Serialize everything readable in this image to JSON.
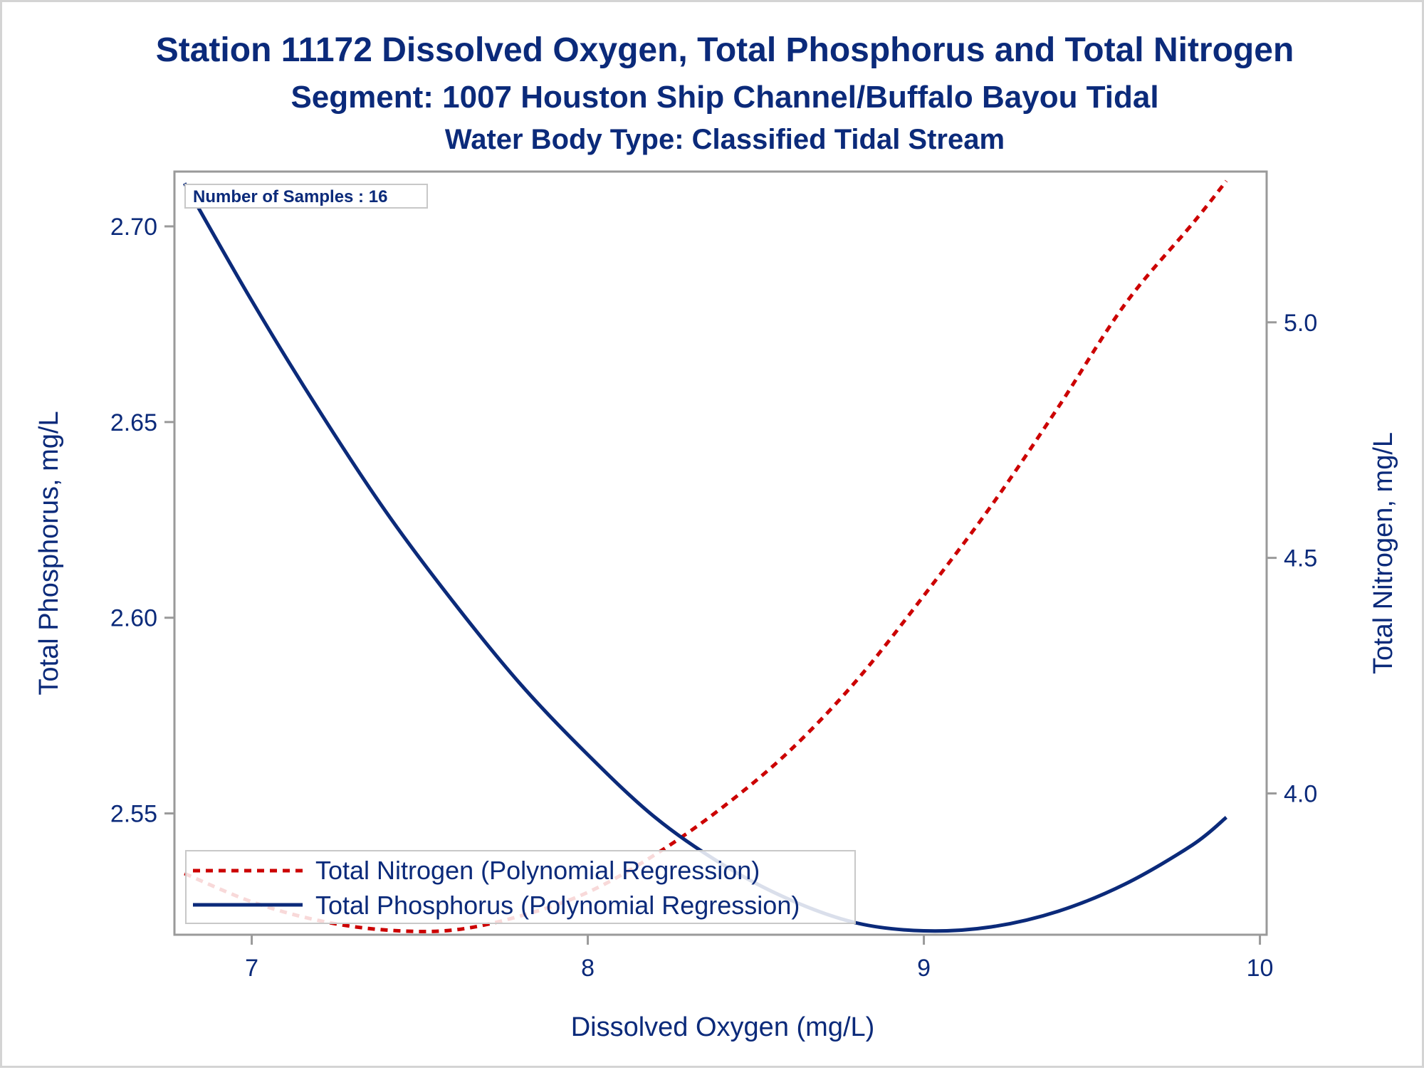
{
  "titles": {
    "line1": "Station 11172  Dissolved Oxygen, Total Phosphorus and Total Nitrogen",
    "line2": "Segment: 1007  Houston Ship Channel/Buffalo Bayou Tidal",
    "line3": "Water Body Type: Classified Tidal Stream"
  },
  "inset": {
    "samples_label": "Number of Samples : 16"
  },
  "colors": {
    "text": "#0b2a7a",
    "phosphorus": "#0b2a7a",
    "nitrogen": "#cc0000",
    "frame": "#9a9a9a"
  },
  "chart_data": {
    "type": "line",
    "xlabel": "Dissolved Oxygen (mg/L)",
    "ylabel": "Total Phosphorus, mg/L",
    "y2label": "Total Nitrogen, mg/L",
    "xlim": [
      6.77,
      10.02
    ],
    "ylim": [
      2.519,
      2.714
    ],
    "y2lim": [
      3.7,
      5.32
    ],
    "x_ticks": [
      "7",
      "8",
      "9",
      "10"
    ],
    "y_ticks": [
      "2.55",
      "2.60",
      "2.65",
      "2.70"
    ],
    "y2_ticks": [
      "4.0",
      "4.5",
      "5.0"
    ],
    "legend_position": "bottom-left",
    "series": [
      {
        "name": "Total Nitrogen (Polynomial Regression)",
        "axis": "right",
        "style": "dashed",
        "x": [
          6.8,
          7.0,
          7.2,
          7.4,
          7.6,
          7.8,
          8.0,
          8.2,
          8.4,
          8.6,
          8.8,
          9.0,
          9.2,
          9.4,
          9.6,
          9.8,
          9.9
        ],
        "y": [
          3.83,
          3.77,
          3.73,
          3.71,
          3.71,
          3.74,
          3.79,
          3.87,
          3.97,
          4.09,
          4.24,
          4.42,
          4.61,
          4.82,
          5.04,
          5.21,
          5.3
        ]
      },
      {
        "name": "Total Phosphorus (Polynomial Regression)",
        "axis": "left",
        "style": "solid",
        "x": [
          6.8,
          7.0,
          7.2,
          7.4,
          7.6,
          7.8,
          8.0,
          8.2,
          8.4,
          8.6,
          8.8,
          9.0,
          9.2,
          9.4,
          9.6,
          9.8,
          9.9
        ],
        "y": [
          2.711,
          2.681,
          2.653,
          2.627,
          2.604,
          2.583,
          2.565,
          2.549,
          2.537,
          2.528,
          2.522,
          2.52,
          2.521,
          2.525,
          2.532,
          2.542,
          2.549
        ]
      }
    ]
  }
}
